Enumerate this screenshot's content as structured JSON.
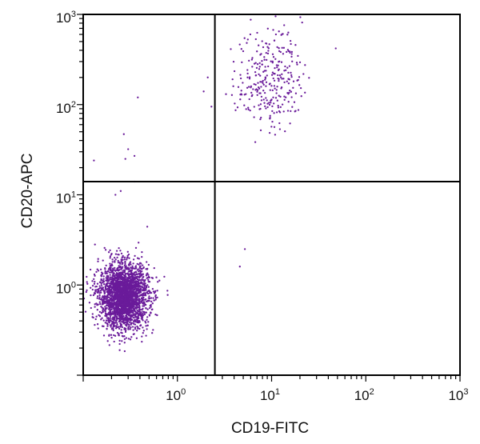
{
  "chart_data": {
    "type": "scatter",
    "title": "",
    "xlabel": "CD19-FITC",
    "ylabel": "CD20-APC",
    "x_scale": "log",
    "y_scale": "log",
    "xlim": [
      0.1,
      1000
    ],
    "ylim": [
      0.1,
      1000
    ],
    "x_ticks": [
      {
        "base": "10",
        "exp": "0",
        "value": 1
      },
      {
        "base": "10",
        "exp": "1",
        "value": 10
      },
      {
        "base": "10",
        "exp": "2",
        "value": 100
      },
      {
        "base": "10",
        "exp": "3",
        "value": 1000
      }
    ],
    "y_ticks": [
      {
        "base": "10",
        "exp": "0",
        "value": 1
      },
      {
        "base": "10",
        "exp": "1",
        "value": 10
      },
      {
        "base": "10",
        "exp": "2",
        "value": 100
      },
      {
        "base": "10",
        "exp": "3",
        "value": 1000
      }
    ],
    "quadrant_gates": {
      "x": 2.5,
      "y": 14
    },
    "point_color": "#6a1b9a",
    "grid": false,
    "populations": [
      {
        "x_center": 0.27,
        "y_center": 0.75,
        "x_spread_log": 0.13,
        "y_spread_log": 0.18,
        "count": 2600
      },
      {
        "x_center": 9.5,
        "y_center": 200,
        "x_spread_log": 0.17,
        "y_spread_log": 0.28,
        "count": 300
      }
    ],
    "sparse_points": [
      {
        "x": 0.13,
        "y": 24
      },
      {
        "x": 0.28,
        "y": 25
      },
      {
        "x": 0.35,
        "y": 27
      },
      {
        "x": 0.27,
        "y": 47
      },
      {
        "x": 0.38,
        "y": 120
      },
      {
        "x": 0.3,
        "y": 32
      },
      {
        "x": 1.9,
        "y": 140
      },
      {
        "x": 2.1,
        "y": 200
      },
      {
        "x": 2.3,
        "y": 95
      },
      {
        "x": 48,
        "y": 420
      },
      {
        "x": 5.2,
        "y": 2.5
      },
      {
        "x": 4.6,
        "y": 1.6
      },
      {
        "x": 0.35,
        "y": 14
      },
      {
        "x": 0.22,
        "y": 10
      },
      {
        "x": 0.25,
        "y": 11
      }
    ]
  }
}
